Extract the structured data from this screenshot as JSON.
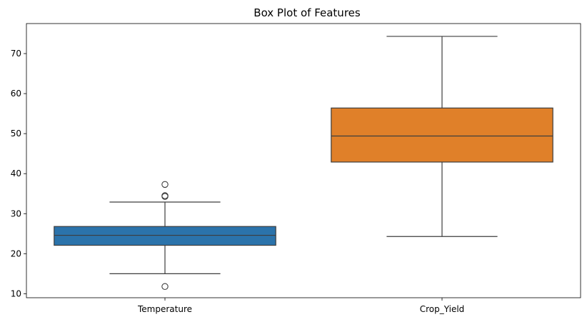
{
  "chart_data": {
    "type": "box",
    "title": "Box Plot of Features",
    "xlabel": "",
    "ylabel": "",
    "ylim": [
      9,
      77.5
    ],
    "yticks": [
      10,
      20,
      30,
      40,
      50,
      60,
      70
    ],
    "grid": false,
    "categories": [
      "Temperature",
      "Crop_Yield"
    ],
    "boxes": [
      {
        "category": "Temperature",
        "color": "#2b73ab",
        "whisker_low": 15.0,
        "q1": 22.1,
        "median": 24.6,
        "q3": 26.8,
        "whisker_high": 32.9,
        "outliers": [
          37.3,
          34.5,
          34.3,
          11.8
        ]
      },
      {
        "category": "Crop_Yield",
        "color": "#e08029",
        "whisker_low": 24.3,
        "q1": 42.9,
        "median": 49.4,
        "q3": 56.4,
        "whisker_high": 74.3,
        "outliers": []
      }
    ]
  }
}
